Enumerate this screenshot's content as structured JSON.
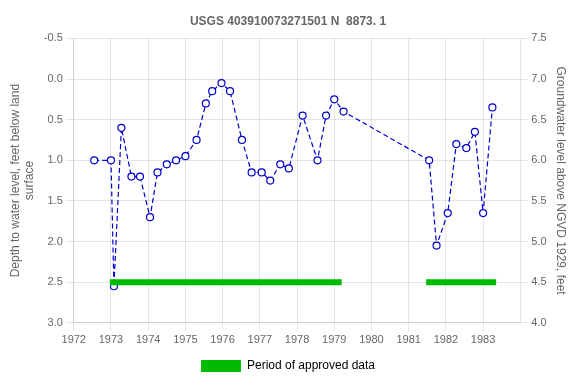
{
  "chart_data": {
    "type": "line",
    "title": "USGS 403910073271501 N  8873. 1",
    "y_label": "Depth to water level, feet below land\nsurface",
    "y2_label": "Groundwater level above NGVD 1929, feet",
    "x": [
      1972.55,
      1973.0,
      1973.08,
      1973.28,
      1973.55,
      1973.78,
      1974.05,
      1974.25,
      1974.5,
      1974.75,
      1975.0,
      1975.3,
      1975.55,
      1975.72,
      1975.97,
      1976.2,
      1976.52,
      1976.78,
      1977.05,
      1977.28,
      1977.55,
      1977.78,
      1978.15,
      1978.55,
      1978.78,
      1979.0,
      1979.25,
      1981.55,
      1981.75,
      1982.05,
      1982.28,
      1982.55,
      1982.78,
      1983.0,
      1983.25
    ],
    "series": [
      {
        "type": "line",
        "color": "#0000cc",
        "marker": "o",
        "line_style": "dashed",
        "values": [
          1.0,
          1.0,
          2.55,
          0.6,
          1.2,
          1.2,
          1.7,
          1.15,
          1.05,
          1.0,
          0.95,
          0.75,
          0.3,
          0.15,
          0.05,
          0.15,
          0.75,
          1.15,
          1.15,
          1.25,
          1.05,
          1.1,
          0.45,
          1.0,
          0.45,
          0.25,
          0.4,
          1.0,
          2.05,
          1.65,
          0.8,
          0.85,
          0.65,
          1.65,
          0.35
        ]
      },
      {
        "name": "Period of approved data",
        "type": "bar",
        "color": "#00bb00",
        "y": 2.5,
        "ranges": [
          [
            1972.97,
            1979.2
          ],
          [
            1981.47,
            1983.35
          ]
        ]
      }
    ],
    "xlim": [
      1972,
      1984
    ],
    "xticks": [
      1972,
      1973,
      1974,
      1975,
      1976,
      1977,
      1978,
      1979,
      1980,
      1981,
      1982,
      1983
    ],
    "ylim": [
      3.0,
      -0.5
    ],
    "yticks": [
      -0.5,
      {
        "value": 0.0,
        "label": "0.0"
      },
      0.5,
      {
        "value": 1.0,
        "label": "1.0"
      },
      1.5,
      {
        "value": 2.0,
        "label": "2.0"
      },
      2.5,
      {
        "value": 3.0,
        "label": "3.0"
      }
    ],
    "y2lim": [
      4.0,
      7.5
    ],
    "y2ticks": [
      7.5,
      {
        "value": 7.0,
        "label": "7.0"
      },
      6.5,
      {
        "value": 6.0,
        "label": "6.0"
      },
      5.5,
      {
        "value": 5.0,
        "label": "5.0"
      },
      4.5,
      {
        "value": 4.0,
        "label": "4.0"
      }
    ],
    "grid": true,
    "legend": "bottom"
  }
}
